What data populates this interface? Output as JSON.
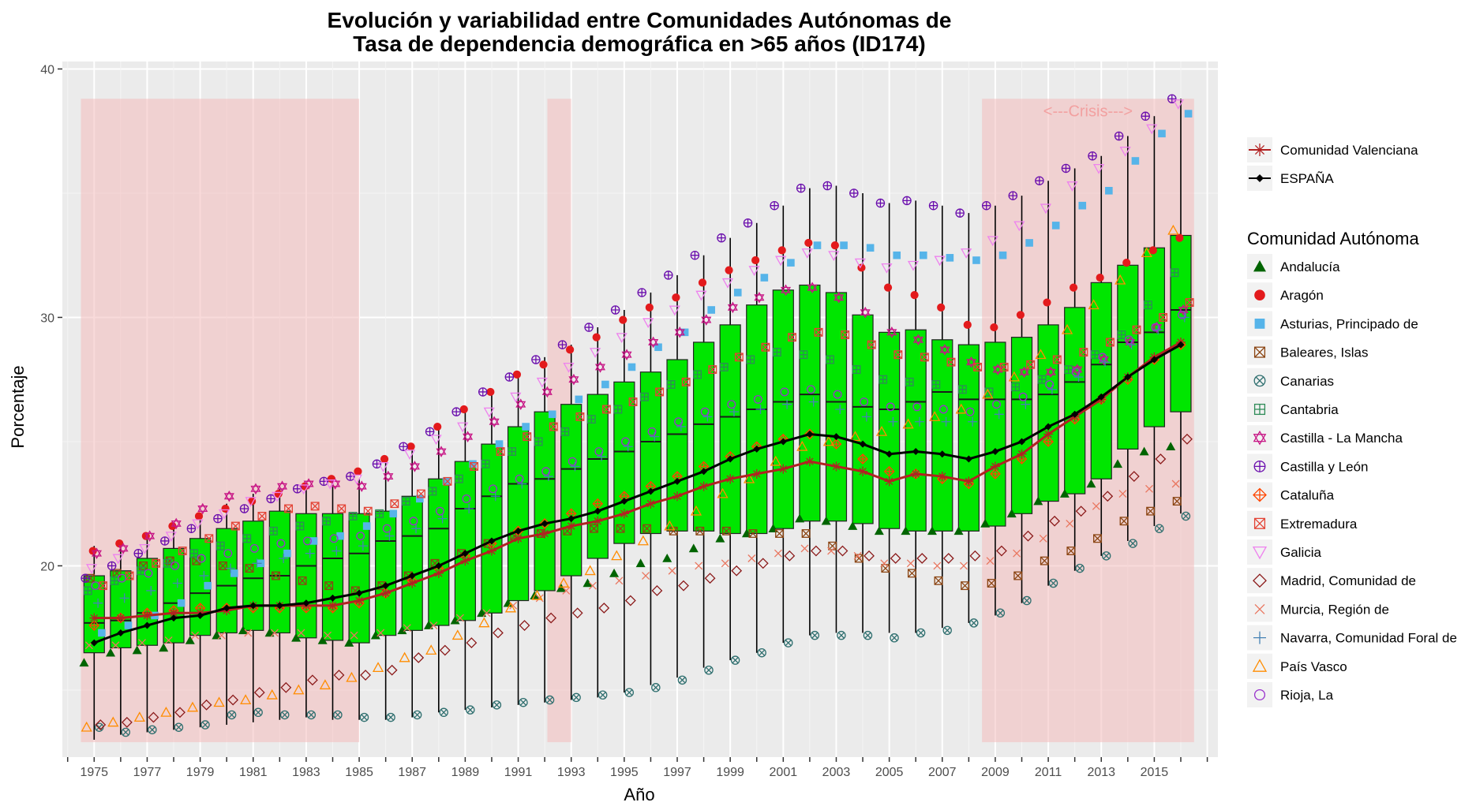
{
  "chart_data": {
    "type": "box",
    "title_line1": "Evolución y variabilidad entre Comunidades Autónomas de",
    "title_line2": "Tasa de dependencia demográfica en >65 años (ID174)",
    "xlabel": "Año",
    "ylabel": "Porcentaje",
    "ylim": [
      12.3,
      40.3
    ],
    "y_ticks": [
      20,
      30,
      40
    ],
    "x_range": [
      1973.8,
      2017.4
    ],
    "x_tick_labels": [
      "1975",
      "1977",
      "1979",
      "1981",
      "1983",
      "1985",
      "1987",
      "1989",
      "1991",
      "1993",
      "1995",
      "1997",
      "1999",
      "2001",
      "2003",
      "2005",
      "2007",
      "2009",
      "2011",
      "2013",
      "2015"
    ],
    "grid": true,
    "legend_position": "right",
    "colors": {
      "panel": "#ebebeb",
      "grid_major": "#ffffff",
      "box_fill": "#00e600",
      "shade": "#f4bcbc",
      "espana": "#000000",
      "valenciana": "#b22222"
    },
    "shaded_periods": [
      {
        "from": 1974.5,
        "to": 1985.0
      },
      {
        "from": 1992.1,
        "to": 1993.0
      },
      {
        "from": 2008.5,
        "to": 2016.5,
        "label": "<---Crisis--->"
      }
    ],
    "years": [
      1975,
      1976,
      1977,
      1978,
      1979,
      1980,
      1981,
      1982,
      1983,
      1984,
      1985,
      1986,
      1987,
      1988,
      1989,
      1990,
      1991,
      1992,
      1993,
      1994,
      1995,
      1996,
      1997,
      1998,
      1999,
      2000,
      2001,
      2002,
      2003,
      2004,
      2005,
      2006,
      2007,
      2008,
      2009,
      2010,
      2011,
      2012,
      2013,
      2014,
      2015,
      2016
    ],
    "boxes": {
      "whisker_low": [
        13.0,
        13.2,
        13.3,
        13.4,
        13.5,
        13.6,
        13.7,
        13.8,
        13.9,
        13.8,
        13.8,
        13.8,
        13.9,
        14.1,
        14.2,
        14.3,
        14.4,
        14.5,
        14.6,
        14.7,
        14.9,
        15.2,
        15.5,
        15.9,
        16.2,
        16.5,
        16.9,
        17.2,
        17.3,
        17.3,
        17.3,
        17.3,
        17.5,
        17.7,
        18.0,
        18.5,
        19.2,
        19.8,
        20.4,
        21.0,
        21.6,
        22.1
      ],
      "q1": [
        16.5,
        16.7,
        16.8,
        16.9,
        17.2,
        17.3,
        17.4,
        17.3,
        17.1,
        17.0,
        16.9,
        17.2,
        17.4,
        17.6,
        17.8,
        18.1,
        18.6,
        19.0,
        19.6,
        20.3,
        20.9,
        21.3,
        21.4,
        21.4,
        21.3,
        21.3,
        21.5,
        21.8,
        21.8,
        21.7,
        21.5,
        21.4,
        21.4,
        21.4,
        21.6,
        22.1,
        22.6,
        22.9,
        23.5,
        24.7,
        25.6,
        26.2
      ],
      "median": [
        17.7,
        17.8,
        18.1,
        18.5,
        18.9,
        19.2,
        19.5,
        19.6,
        20.0,
        20.3,
        20.5,
        21.0,
        21.2,
        21.5,
        22.3,
        22.8,
        23.3,
        23.5,
        23.9,
        24.3,
        24.6,
        25.0,
        25.3,
        25.7,
        26.0,
        26.3,
        26.6,
        26.9,
        26.6,
        26.4,
        26.3,
        26.6,
        27.0,
        26.7,
        26.7,
        26.7,
        26.9,
        27.4,
        28.1,
        29.0,
        29.4,
        30.3
      ],
      "q3": [
        19.6,
        19.8,
        20.3,
        20.7,
        21.1,
        21.5,
        21.8,
        22.2,
        22.1,
        22.1,
        22.1,
        22.2,
        22.8,
        23.5,
        24.2,
        24.9,
        25.6,
        26.2,
        26.5,
        26.9,
        27.4,
        27.8,
        28.3,
        29.0,
        29.7,
        30.5,
        31.1,
        31.3,
        31.0,
        30.1,
        29.4,
        29.5,
        29.1,
        28.9,
        29.0,
        29.2,
        29.7,
        30.4,
        31.4,
        32.1,
        32.8,
        33.3
      ],
      "whisker_high": [
        20.8,
        21.0,
        21.3,
        21.6,
        22.1,
        22.5,
        22.9,
        23.1,
        23.3,
        23.5,
        23.5,
        24.3,
        24.9,
        25.5,
        26.3,
        27.0,
        27.7,
        28.4,
        28.9,
        29.6,
        30.3,
        31.0,
        31.7,
        32.5,
        33.2,
        33.8,
        34.5,
        35.2,
        35.3,
        35.0,
        34.6,
        34.7,
        34.5,
        34.2,
        34.5,
        34.9,
        35.5,
        36.0,
        36.5,
        37.3,
        38.1,
        38.8
      ]
    },
    "series": [
      {
        "name": "ESPAÑA",
        "values": [
          16.9,
          17.3,
          17.6,
          17.9,
          18.0,
          18.3,
          18.4,
          18.4,
          18.5,
          18.7,
          18.9,
          19.2,
          19.6,
          20.0,
          20.5,
          21.0,
          21.4,
          21.7,
          21.9,
          22.2,
          22.6,
          23.0,
          23.4,
          23.8,
          24.3,
          24.7,
          25.0,
          25.3,
          25.2,
          24.9,
          24.5,
          24.6,
          24.5,
          24.3,
          24.6,
          25.0,
          25.6,
          26.1,
          26.8,
          27.6,
          28.3,
          28.9
        ]
      },
      {
        "name": "Comunidad Valenciana",
        "values": [
          17.9,
          17.9,
          18.0,
          18.1,
          18.1,
          18.2,
          18.4,
          18.4,
          18.4,
          18.4,
          18.6,
          18.9,
          19.3,
          19.7,
          20.2,
          20.6,
          21.1,
          21.3,
          21.6,
          21.8,
          22.1,
          22.5,
          22.8,
          23.2,
          23.5,
          23.7,
          23.9,
          24.2,
          24.0,
          23.8,
          23.4,
          23.7,
          23.6,
          23.4,
          24.0,
          24.5,
          25.3,
          26.0,
          26.7,
          27.6,
          28.4,
          29.0
        ]
      }
    ],
    "regions": [
      {
        "name": "Andalucía",
        "color": "#006400",
        "shape": "triangle-filled",
        "values": [
          16.1,
          16.5,
          16.6,
          16.7,
          17.0,
          17.2,
          17.4,
          17.3,
          17.1,
          17.0,
          16.9,
          17.2,
          17.4,
          17.6,
          17.8,
          18.1,
          18.5,
          18.8,
          19.1,
          19.3,
          19.7,
          20.1,
          20.3,
          20.7,
          21.1,
          21.3,
          21.5,
          21.9,
          21.8,
          21.6,
          21.4,
          21.4,
          21.4,
          21.4,
          21.7,
          22.1,
          22.6,
          22.9,
          23.3,
          24.1,
          24.6,
          24.8
        ]
      },
      {
        "name": "Aragón",
        "color": "#e31a1c",
        "shape": "circle-filled",
        "values": [
          20.6,
          20.9,
          21.2,
          21.6,
          22.0,
          22.3,
          22.6,
          22.9,
          23.2,
          23.5,
          23.8,
          24.3,
          24.8,
          25.6,
          26.3,
          27.0,
          27.7,
          28.1,
          28.7,
          29.2,
          29.9,
          30.4,
          30.8,
          31.4,
          31.9,
          32.3,
          32.7,
          33.0,
          32.9,
          32.0,
          31.2,
          30.9,
          30.4,
          29.7,
          29.6,
          30.1,
          30.6,
          31.2,
          31.6,
          32.2,
          32.7,
          33.2
        ]
      },
      {
        "name": "Asturias, Principado de",
        "color": "#56b4e9",
        "shape": "square-filled",
        "values": [
          17.3,
          17.6,
          18.0,
          18.5,
          19.2,
          19.7,
          20.1,
          20.5,
          21.0,
          21.2,
          21.6,
          22.1,
          22.7,
          23.4,
          24.1,
          24.9,
          25.6,
          26.1,
          26.7,
          27.3,
          28.0,
          28.8,
          29.4,
          30.3,
          31.0,
          31.6,
          32.2,
          32.9,
          32.9,
          32.8,
          32.5,
          32.5,
          32.4,
          32.3,
          32.5,
          33.0,
          33.7,
          34.5,
          35.1,
          36.3,
          37.4,
          38.2
        ]
      },
      {
        "name": "Baleares, Islas",
        "color": "#8b4513",
        "shape": "square-x",
        "values": [
          19.5,
          19.7,
          20.0,
          20.2,
          20.2,
          20.0,
          19.9,
          19.6,
          19.4,
          19.2,
          19.0,
          19.2,
          19.6,
          20.1,
          20.5,
          20.9,
          21.2,
          21.3,
          21.4,
          21.5,
          21.5,
          21.5,
          21.4,
          21.4,
          21.4,
          21.3,
          21.3,
          21.3,
          20.8,
          20.3,
          19.9,
          19.7,
          19.4,
          19.2,
          19.3,
          19.6,
          20.2,
          20.6,
          21.1,
          21.8,
          22.2,
          22.6
        ]
      },
      {
        "name": "Canarias",
        "color": "#2f6f6f",
        "shape": "circle-x",
        "values": [
          13.5,
          13.3,
          13.4,
          13.5,
          13.6,
          14.0,
          14.1,
          14.0,
          14.0,
          14.0,
          13.9,
          13.9,
          14.0,
          14.1,
          14.2,
          14.4,
          14.5,
          14.6,
          14.7,
          14.8,
          14.9,
          15.1,
          15.4,
          15.8,
          16.2,
          16.5,
          16.9,
          17.2,
          17.2,
          17.2,
          17.1,
          17.3,
          17.4,
          17.7,
          18.1,
          18.6,
          19.3,
          19.9,
          20.4,
          20.9,
          21.5,
          22.0
        ]
      },
      {
        "name": "Cantabria",
        "color": "#2e8b57",
        "shape": "square-plus",
        "values": [
          19.0,
          19.4,
          19.8,
          20.1,
          20.5,
          20.8,
          21.1,
          21.4,
          21.6,
          21.8,
          22.0,
          22.1,
          22.6,
          23.0,
          23.5,
          24.1,
          24.6,
          25.0,
          25.4,
          25.9,
          26.3,
          26.8,
          27.3,
          27.7,
          28.0,
          28.3,
          28.6,
          28.5,
          28.3,
          27.9,
          27.5,
          27.4,
          27.3,
          27.1,
          27.0,
          27.2,
          27.5,
          27.9,
          28.5,
          29.3,
          30.5,
          31.8
        ]
      },
      {
        "name": "Castilla - La Mancha",
        "color": "#c71585",
        "shape": "star",
        "values": [
          20.5,
          20.7,
          21.2,
          21.7,
          22.3,
          22.8,
          23.1,
          23.2,
          23.3,
          23.3,
          23.2,
          23.6,
          24.0,
          24.6,
          25.2,
          25.8,
          26.5,
          27.0,
          27.5,
          28.0,
          28.5,
          29.0,
          29.4,
          29.9,
          30.4,
          30.8,
          31.1,
          31.2,
          30.8,
          30.2,
          29.4,
          29.1,
          28.7,
          28.2,
          27.9,
          27.8,
          27.8,
          27.9,
          28.3,
          29.0,
          29.6,
          30.3
        ]
      },
      {
        "name": "Castilla y León",
        "color": "#6a0dad",
        "shape": "circle-plus",
        "values": [
          19.5,
          20.0,
          20.5,
          21.0,
          21.5,
          21.9,
          22.3,
          22.7,
          23.1,
          23.4,
          23.6,
          24.1,
          24.8,
          25.4,
          26.2,
          27.0,
          27.6,
          28.3,
          28.9,
          29.6,
          30.3,
          31.0,
          31.7,
          32.5,
          33.2,
          33.8,
          34.5,
          35.2,
          35.3,
          35.0,
          34.6,
          34.7,
          34.5,
          34.2,
          34.5,
          34.9,
          35.5,
          36.0,
          36.5,
          37.3,
          38.1,
          38.8
        ]
      },
      {
        "name": "Cataluña",
        "color": "#ff4500",
        "shape": "diamond-plus",
        "values": [
          17.6,
          17.9,
          18.1,
          18.2,
          18.3,
          18.3,
          18.3,
          18.3,
          18.3,
          18.3,
          18.5,
          18.9,
          19.4,
          19.9,
          20.4,
          20.9,
          21.4,
          21.7,
          22.1,
          22.5,
          22.8,
          23.2,
          23.6,
          24.0,
          24.4,
          24.8,
          25.1,
          25.3,
          24.9,
          24.3,
          23.8,
          23.7,
          23.5,
          23.3,
          23.7,
          24.3,
          25.0,
          25.9,
          26.7,
          27.5,
          28.3,
          28.9
        ]
      },
      {
        "name": "Extremadura",
        "color": "#e34234",
        "shape": "square-x",
        "values": [
          19.2,
          19.6,
          20.1,
          20.6,
          21.1,
          21.6,
          22.0,
          22.3,
          22.4,
          22.3,
          22.2,
          22.5,
          22.9,
          23.4,
          24.0,
          24.6,
          25.2,
          25.6,
          26.0,
          26.3,
          26.6,
          27.0,
          27.4,
          27.9,
          28.4,
          28.8,
          29.2,
          29.4,
          29.3,
          28.9,
          28.5,
          28.4,
          28.2,
          28.0,
          28.0,
          28.1,
          28.3,
          28.6,
          29.0,
          29.5,
          30.0,
          30.6
        ]
      },
      {
        "name": "Galicia",
        "color": "#ee82ee",
        "shape": "triangle-down",
        "values": [
          19.9,
          20.3,
          20.7,
          21.2,
          21.7,
          22.1,
          22.6,
          22.8,
          23.1,
          23.3,
          23.5,
          24.0,
          24.5,
          25.1,
          25.6,
          26.2,
          26.8,
          27.4,
          28.0,
          28.6,
          29.2,
          29.8,
          30.3,
          30.9,
          31.4,
          31.9,
          32.3,
          32.6,
          32.5,
          32.2,
          32.0,
          32.1,
          32.3,
          32.6,
          33.1,
          33.7,
          34.4,
          35.3,
          36.0,
          36.7,
          37.6,
          38.6
        ]
      },
      {
        "name": "Madrid, Comunidad de",
        "color": "#8b1a1a",
        "shape": "diamond",
        "values": [
          13.6,
          13.7,
          13.9,
          14.1,
          14.4,
          14.6,
          14.9,
          15.1,
          15.4,
          15.6,
          15.6,
          15.8,
          16.3,
          16.6,
          16.9,
          17.3,
          17.6,
          17.9,
          18.1,
          18.3,
          18.6,
          19.0,
          19.2,
          19.5,
          19.8,
          20.1,
          20.4,
          20.6,
          20.6,
          20.4,
          20.3,
          20.3,
          20.3,
          20.4,
          20.6,
          21.2,
          21.8,
          22.2,
          22.8,
          23.6,
          24.3,
          25.1
        ]
      },
      {
        "name": "Murcia, Región de",
        "color": "#e9765f",
        "shape": "cross-x",
        "values": [
          16.8,
          16.8,
          16.9,
          17.0,
          17.2,
          17.2,
          17.3,
          17.3,
          17.3,
          17.2,
          17.2,
          17.3,
          17.5,
          17.6,
          17.9,
          18.1,
          18.4,
          18.7,
          19.0,
          19.2,
          19.4,
          19.6,
          19.8,
          20.0,
          20.1,
          20.3,
          20.5,
          20.7,
          20.6,
          20.4,
          20.1,
          20.1,
          20.0,
          20.0,
          20.2,
          20.5,
          21.1,
          21.7,
          22.4,
          22.9,
          23.1,
          23.3
        ]
      },
      {
        "name": "Navarra, Comunidad Foral de",
        "color": "#4682b4",
        "shape": "plus",
        "values": [
          18.5,
          18.7,
          19.0,
          19.3,
          19.6,
          19.9,
          20.1,
          20.3,
          20.5,
          20.6,
          20.8,
          21.2,
          21.5,
          21.9,
          22.3,
          22.8,
          23.3,
          23.6,
          24.0,
          24.4,
          24.8,
          25.2,
          25.6,
          26.0,
          26.2,
          26.3,
          26.5,
          26.6,
          26.3,
          26.0,
          25.8,
          25.8,
          25.8,
          25.8,
          26.1,
          26.5,
          27.1,
          27.6,
          28.2,
          28.9,
          29.5,
          30.0
        ]
      },
      {
        "name": "País Vasco",
        "color": "#ff8c00",
        "shape": "triangle",
        "values": [
          13.5,
          13.7,
          13.9,
          14.1,
          14.3,
          14.5,
          14.6,
          14.8,
          15.0,
          15.2,
          15.5,
          15.9,
          16.3,
          16.6,
          17.2,
          17.7,
          18.3,
          18.8,
          19.3,
          19.8,
          20.4,
          21.0,
          21.6,
          22.2,
          22.9,
          23.5,
          24.2,
          24.8,
          25.0,
          25.2,
          25.4,
          25.7,
          26.0,
          26.3,
          26.9,
          27.6,
          28.5,
          29.5,
          30.5,
          31.5,
          32.6,
          33.5
        ]
      },
      {
        "name": "Rioja, La",
        "color": "#9932cc",
        "shape": "circle",
        "values": [
          19.2,
          19.5,
          19.7,
          20.0,
          20.3,
          20.5,
          20.7,
          20.9,
          21.0,
          21.1,
          21.2,
          21.5,
          21.8,
          22.2,
          22.7,
          23.1,
          23.5,
          23.8,
          24.2,
          24.6,
          25.0,
          25.4,
          25.8,
          26.2,
          26.5,
          26.7,
          27.0,
          27.1,
          26.9,
          26.6,
          26.4,
          26.4,
          26.3,
          26.2,
          26.5,
          26.8,
          27.3,
          27.8,
          28.4,
          29.1,
          29.6,
          30.1
        ]
      }
    ],
    "legend": {
      "top_items": [
        {
          "label": "Comunidad Valenciana",
          "color": "#b22222",
          "shape": "asterisk"
        },
        {
          "label": "ESPAÑA",
          "color": "#000000",
          "shape": "diamond-filled"
        }
      ],
      "title": "Comunidad Autónoma"
    }
  }
}
